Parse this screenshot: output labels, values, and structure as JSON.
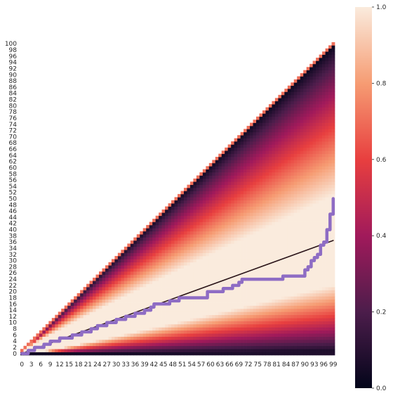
{
  "chart_data": {
    "type": "heatmap",
    "title": "",
    "xlabel": "",
    "ylabel": "",
    "x_range": [
      0,
      99
    ],
    "y_range": [
      0,
      100
    ],
    "x_tick_step": 3,
    "y_tick_step": 2,
    "colormap": "rocket",
    "colormap_stops": [
      "#03051a",
      "#4c1d4b",
      "#a11a5b",
      "#e83f3f",
      "#f69c73",
      "#faebdd"
    ],
    "mask": "upper-triangle masked (cells with y > x + 1 are empty)",
    "colorbar": {
      "min": 0.0,
      "max": 1.0,
      "ticks": [
        "0.0",
        "0.2",
        "0.4",
        "0.6",
        "0.8",
        "1.0"
      ]
    },
    "description_note": "",
    "overlay_lines": [
      {
        "kind": "straight",
        "color": "#2a1419",
        "points": [
          [
            0,
            0
          ],
          [
            99,
            36.5
          ]
        ]
      },
      {
        "kind": "step",
        "color": "#8e6cc4",
        "points": [
          [
            0,
            0
          ],
          [
            2,
            1
          ],
          [
            4,
            2
          ],
          [
            6,
            2
          ],
          [
            7,
            3
          ],
          [
            9,
            4
          ],
          [
            11,
            4
          ],
          [
            12,
            5
          ],
          [
            15,
            5
          ],
          [
            16,
            6
          ],
          [
            18,
            6
          ],
          [
            19,
            7
          ],
          [
            21,
            7
          ],
          [
            22,
            8
          ],
          [
            24,
            9
          ],
          [
            26,
            9
          ],
          [
            27,
            10
          ],
          [
            29,
            10
          ],
          [
            30,
            11
          ],
          [
            32,
            11
          ],
          [
            33,
            12
          ],
          [
            35,
            12
          ],
          [
            36,
            13
          ],
          [
            38,
            13
          ],
          [
            39,
            14
          ],
          [
            41,
            15
          ],
          [
            42,
            16
          ],
          [
            46,
            16
          ],
          [
            47,
            17
          ],
          [
            49,
            17
          ],
          [
            50,
            18
          ],
          [
            58,
            18
          ],
          [
            59,
            20
          ],
          [
            63,
            20
          ],
          [
            64,
            21
          ],
          [
            66,
            21
          ],
          [
            67,
            22
          ],
          [
            69,
            23
          ],
          [
            70,
            24
          ],
          [
            82,
            24
          ],
          [
            83,
            25
          ],
          [
            89,
            25
          ],
          [
            90,
            27
          ],
          [
            91,
            28
          ],
          [
            92,
            30
          ],
          [
            93,
            31
          ],
          [
            94,
            32
          ],
          [
            95,
            35
          ],
          [
            96,
            36
          ],
          [
            97,
            40
          ],
          [
            98,
            45
          ],
          [
            99,
            50
          ]
        ]
      }
    ]
  }
}
